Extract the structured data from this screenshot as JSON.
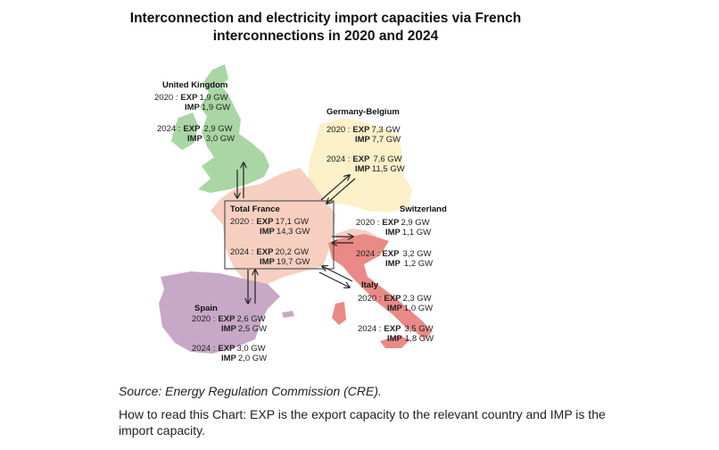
{
  "title_line1": "Interconnection and electricity import capacities via French",
  "title_line2": "interconnections in 2020 and 2024",
  "source": "Source: Energy Regulation Commission (CRE).",
  "how_to_read": "How to read this Chart: EXP is the export capacity to the relevant country and IMP is the import capacity.",
  "colors": {
    "uk": "#a9d6a4",
    "germany_belgium": "#fbf0c8",
    "france": "#f6cfc0",
    "switzerland": "#f2d1c4",
    "italy": "#ea8a86",
    "spain": "#c7a8c6",
    "box_border": "#555555",
    "arrow": "#222222"
  },
  "countries": {
    "uk": {
      "name": "United Kingdom",
      "y2020_prefix": "2020 :",
      "y2020_exp_key": "EXP",
      "y2020_exp": "1,9 GW",
      "y2020_imp_key": "IMP",
      "y2020_imp": "1,9 GW",
      "y2024_prefix": "2024 :",
      "y2024_exp_key": "EXP",
      "y2024_exp": "2,9 GW",
      "y2024_imp_key": "IMP",
      "y2024_imp": "3,0 GW"
    },
    "germany_belgium": {
      "name": "Germany-Belgium",
      "y2020_prefix": "2020 :",
      "y2020_exp_key": "EXP",
      "y2020_exp": "7,3 GW",
      "y2020_imp_key": "IMP",
      "y2020_imp": "7,7 GW",
      "y2024_prefix": "2024 :",
      "y2024_exp_key": "EXP",
      "y2024_exp": "7,6 GW",
      "y2024_imp_key": "IMP",
      "y2024_imp": "11,5 GW"
    },
    "switzerland": {
      "name": "Switzerland",
      "y2020_prefix": "2020 :",
      "y2020_exp_key": "EXP",
      "y2020_exp": "2,9 GW",
      "y2020_imp_key": "IMP",
      "y2020_imp": "1,1 GW",
      "y2024_prefix": "2024 :",
      "y2024_exp_key": "EXP",
      "y2024_exp": "3,2 GW",
      "y2024_imp_key": "IMP",
      "y2024_imp": "1,2 GW"
    },
    "italy": {
      "name": "Italy",
      "y2020_prefix": "2020 :",
      "y2020_exp_key": "EXP",
      "y2020_exp": "2,3 GW",
      "y2020_imp_key": "IMP",
      "y2020_imp": "1,0 GW",
      "y2024_prefix": "2024 :",
      "y2024_exp_key": "EXP",
      "y2024_exp": "3,5 GW",
      "y2024_imp_key": "IMP",
      "y2024_imp": "1,8 GW"
    },
    "spain": {
      "name": "Spain",
      "y2020_prefix": "2020 :",
      "y2020_exp_key": "EXP",
      "y2020_exp": "2,6 GW",
      "y2020_imp_key": "IMP",
      "y2020_imp": "2,5 GW",
      "y2024_prefix": "2024 :",
      "y2024_exp_key": "EXP",
      "y2024_exp": "3,0 GW",
      "y2024_imp_key": "IMP",
      "y2024_imp": "2,0 GW"
    },
    "france": {
      "name": "Total France",
      "y2020_prefix": "2020 :",
      "y2020_exp_key": "EXP",
      "y2020_exp": "17,1 GW",
      "y2020_imp_key": "IMP",
      "y2020_imp": "14,3 GW",
      "y2024_prefix": "2024 :",
      "y2024_exp_key": "EXP",
      "y2024_exp": "20,2 GW",
      "y2024_imp_key": "IMP",
      "y2024_imp": "19,7 GW"
    }
  }
}
